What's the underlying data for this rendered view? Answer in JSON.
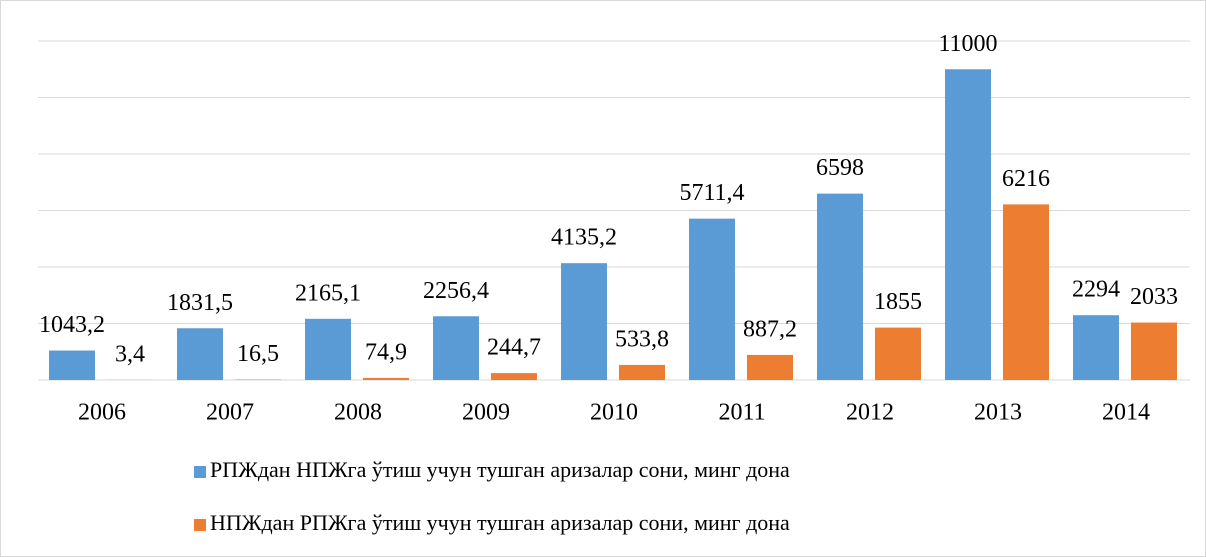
{
  "chart_data": {
    "type": "bar",
    "categories": [
      "2006",
      "2007",
      "2008",
      "2009",
      "2010",
      "2011",
      "2012",
      "2013",
      "2014"
    ],
    "series": [
      {
        "name": "РПЖдан НПЖга ўтиш учун тушган аризалар сони, минг дона",
        "color": "#5b9bd5",
        "values": [
          1043.2,
          1831.5,
          2165.1,
          2256.4,
          4135.2,
          5711.4,
          6598,
          11000,
          2294
        ],
        "value_labels": [
          "1043,2",
          "1831,5",
          "2165,1",
          "2256,4",
          "4135,2",
          "5711,4",
          "6598",
          "11000",
          "2294"
        ]
      },
      {
        "name": "НПЖдан РПЖга ўтиш учун тушган аризалар сони, минг дона",
        "color": "#ed7d31",
        "values": [
          3.4,
          16.5,
          74.9,
          244.7,
          533.8,
          887.2,
          1855,
          6216,
          2033
        ],
        "value_labels": [
          "3,4",
          "16,5",
          "74,9",
          "244,7",
          "533,8",
          "887,2",
          "1855",
          "6216",
          "2033"
        ]
      }
    ],
    "ylim": [
      0,
      12000
    ],
    "yticks": [
      0,
      2000,
      4000,
      6000,
      8000,
      10000,
      12000
    ],
    "grid": true
  }
}
